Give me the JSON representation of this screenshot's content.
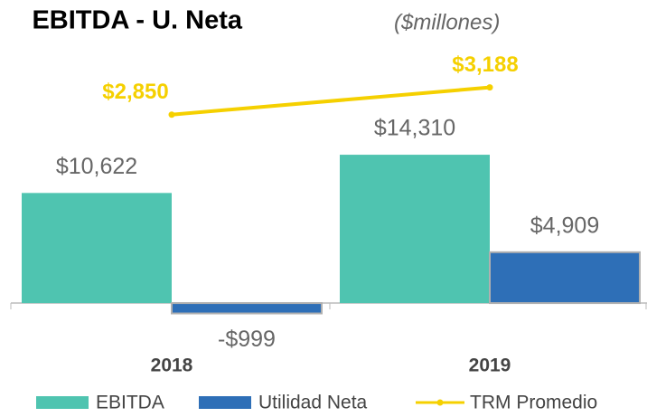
{
  "chart_data": {
    "type": "bar",
    "title": "EBITDA - U. Neta",
    "subtitle": "($millones)",
    "categories": [
      "2018",
      "2019"
    ],
    "series": [
      {
        "name": "EBITDA",
        "color": "#4fc4b0",
        "values": [
          10622,
          14310
        ],
        "value_labels": [
          "$10,622",
          "$14,310"
        ]
      },
      {
        "name": "Utilidad Neta",
        "color": "#2e6fb7",
        "values": [
          -999,
          4909
        ],
        "value_labels": [
          "-$999",
          "$4,909"
        ]
      },
      {
        "name": "TRM Promedio",
        "type": "line",
        "axis": "y2",
        "color": "#f5d000",
        "values": [
          2850,
          3188
        ],
        "value_labels": [
          "$2,850",
          "$3,188"
        ]
      }
    ],
    "ylim": [
      -2000,
      24000
    ],
    "y2lim": [
      250,
      3600
    ]
  }
}
